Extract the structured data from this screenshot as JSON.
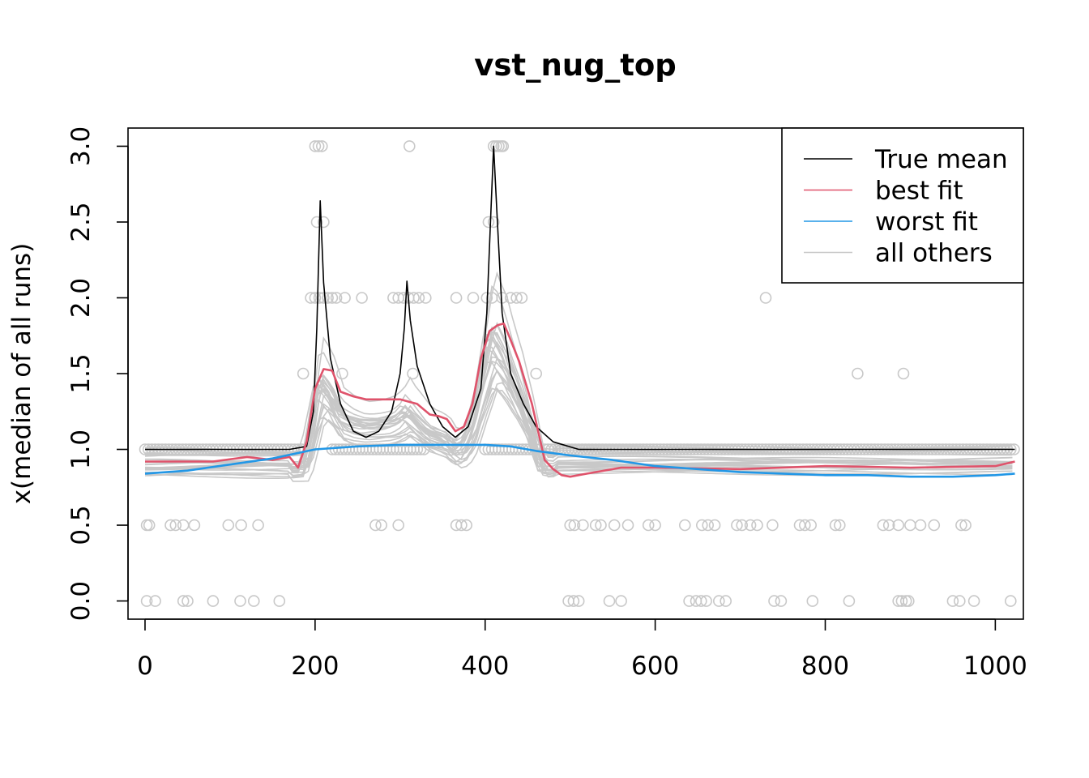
{
  "chart_data": {
    "type": "line",
    "title": "vst_nug_top",
    "xlabel": "",
    "ylabel": "x(median of all runs)",
    "xlim": [
      -20,
      1033
    ],
    "ylim": [
      -0.12,
      3.12
    ],
    "x_ticks": [
      0,
      200,
      400,
      600,
      800,
      1000
    ],
    "y_ticks": [
      0.0,
      0.5,
      1.0,
      1.5,
      2.0,
      2.5,
      3.0
    ],
    "y_tick_labels": [
      "0.0",
      "0.5",
      "1.0",
      "1.5",
      "2.0",
      "2.5",
      "3.0"
    ],
    "legend": {
      "position": "top-right",
      "entries": [
        {
          "label": "True mean",
          "color": "#000000"
        },
        {
          "label": "best fit",
          "color": "#DF536B"
        },
        {
          "label": "worst fit",
          "color": "#2297E6"
        },
        {
          "label": "all others",
          "color": "#C8C8C8"
        }
      ]
    },
    "series": [
      {
        "name": "True mean",
        "color": "#000000",
        "x": [
          0,
          170,
          190,
          198,
          202,
          206,
          210,
          218,
          230,
          245,
          260,
          275,
          290,
          300,
          305,
          308,
          312,
          320,
          335,
          350,
          365,
          380,
          395,
          402,
          407,
          410,
          414,
          420,
          430,
          445,
          460,
          480,
          510,
          600,
          800,
          1023
        ],
        "values": [
          1.0,
          1.0,
          1.02,
          1.25,
          1.8,
          2.64,
          2.1,
          1.6,
          1.3,
          1.12,
          1.08,
          1.12,
          1.25,
          1.5,
          1.8,
          2.11,
          1.85,
          1.55,
          1.3,
          1.15,
          1.08,
          1.15,
          1.4,
          1.9,
          2.6,
          3.0,
          2.55,
          1.9,
          1.5,
          1.3,
          1.15,
          1.05,
          1.0,
          1.0,
          1.0,
          1.0
        ]
      },
      {
        "name": "best fit",
        "color": "#DF536B",
        "x": [
          0,
          40,
          80,
          120,
          150,
          170,
          180,
          190,
          200,
          210,
          220,
          230,
          245,
          260,
          275,
          300,
          320,
          335,
          345,
          355,
          365,
          375,
          385,
          395,
          405,
          415,
          422,
          428,
          440,
          455,
          470,
          480,
          490,
          500,
          520,
          560,
          600,
          700,
          800,
          900,
          1000,
          1023
        ],
        "values": [
          0.92,
          0.92,
          0.92,
          0.95,
          0.93,
          0.95,
          0.88,
          1.05,
          1.4,
          1.53,
          1.52,
          1.38,
          1.35,
          1.33,
          1.33,
          1.33,
          1.3,
          1.23,
          1.22,
          1.2,
          1.12,
          1.15,
          1.3,
          1.6,
          1.78,
          1.82,
          1.83,
          1.75,
          1.58,
          1.3,
          0.93,
          0.87,
          0.83,
          0.82,
          0.84,
          0.88,
          0.88,
          0.87,
          0.89,
          0.88,
          0.89,
          0.92
        ]
      },
      {
        "name": "worst fit",
        "color": "#2297E6",
        "x": [
          0,
          50,
          100,
          150,
          200,
          250,
          300,
          350,
          400,
          430,
          460,
          500,
          550,
          600,
          650,
          700,
          750,
          800,
          850,
          900,
          950,
          1000,
          1023
        ],
        "values": [
          0.84,
          0.86,
          0.9,
          0.94,
          1.0,
          1.02,
          1.03,
          1.03,
          1.03,
          1.02,
          0.99,
          0.96,
          0.93,
          0.89,
          0.87,
          0.85,
          0.84,
          0.83,
          0.83,
          0.82,
          0.82,
          0.83,
          0.84
        ]
      }
    ],
    "other_runs_count": 24,
    "points": {
      "color": "#C8C8C8",
      "values": [
        [
          200,
          3.0
        ],
        [
          204,
          3.0
        ],
        [
          208,
          3.0
        ],
        [
          311,
          3.0
        ],
        [
          410,
          3.0
        ],
        [
          413,
          3.0
        ],
        [
          416,
          3.0
        ],
        [
          419,
          3.0
        ],
        [
          421,
          3.0
        ],
        [
          202,
          2.5
        ],
        [
          210,
          2.5
        ],
        [
          404,
          2.5
        ],
        [
          410,
          2.5
        ],
        [
          195,
          2.0
        ],
        [
          200,
          2.0
        ],
        [
          205,
          2.0
        ],
        [
          210,
          2.0
        ],
        [
          215,
          2.0
        ],
        [
          220,
          2.0
        ],
        [
          225,
          2.0
        ],
        [
          235,
          2.0
        ],
        [
          255,
          2.0
        ],
        [
          292,
          2.0
        ],
        [
          298,
          2.0
        ],
        [
          304,
          2.0
        ],
        [
          310,
          2.0
        ],
        [
          316,
          2.0
        ],
        [
          322,
          2.0
        ],
        [
          330,
          2.0
        ],
        [
          366,
          2.0
        ],
        [
          386,
          2.0
        ],
        [
          402,
          2.0
        ],
        [
          408,
          2.0
        ],
        [
          420,
          2.0
        ],
        [
          430,
          2.0
        ],
        [
          437,
          2.0
        ],
        [
          443,
          2.0
        ],
        [
          730,
          2.0
        ],
        [
          186,
          1.5
        ],
        [
          232,
          1.5
        ],
        [
          315,
          1.5
        ],
        [
          460,
          1.5
        ],
        [
          838,
          1.5
        ],
        [
          892,
          1.5
        ],
        [
          2,
          0.5
        ],
        [
          5,
          0.5
        ],
        [
          30,
          0.5
        ],
        [
          36,
          0.5
        ],
        [
          45,
          0.5
        ],
        [
          58,
          0.5
        ],
        [
          98,
          0.5
        ],
        [
          113,
          0.5
        ],
        [
          133,
          0.5
        ],
        [
          271,
          0.5
        ],
        [
          278,
          0.5
        ],
        [
          298,
          0.5
        ],
        [
          366,
          0.5
        ],
        [
          372,
          0.5
        ],
        [
          378,
          0.5
        ],
        [
          500,
          0.5
        ],
        [
          505,
          0.5
        ],
        [
          515,
          0.5
        ],
        [
          530,
          0.5
        ],
        [
          536,
          0.5
        ],
        [
          552,
          0.5
        ],
        [
          568,
          0.5
        ],
        [
          592,
          0.5
        ],
        [
          600,
          0.5
        ],
        [
          635,
          0.5
        ],
        [
          655,
          0.5
        ],
        [
          662,
          0.5
        ],
        [
          670,
          0.5
        ],
        [
          696,
          0.5
        ],
        [
          702,
          0.5
        ],
        [
          712,
          0.5
        ],
        [
          720,
          0.5
        ],
        [
          738,
          0.5
        ],
        [
          770,
          0.5
        ],
        [
          776,
          0.5
        ],
        [
          783,
          0.5
        ],
        [
          812,
          0.5
        ],
        [
          817,
          0.5
        ],
        [
          868,
          0.5
        ],
        [
          875,
          0.5
        ],
        [
          886,
          0.5
        ],
        [
          900,
          0.5
        ],
        [
          912,
          0.5
        ],
        [
          928,
          0.5
        ],
        [
          960,
          0.5
        ],
        [
          965,
          0.5
        ],
        [
          2,
          0.0
        ],
        [
          12,
          0.0
        ],
        [
          45,
          0.0
        ],
        [
          50,
          0.0
        ],
        [
          80,
          0.0
        ],
        [
          112,
          0.0
        ],
        [
          128,
          0.0
        ],
        [
          158,
          0.0
        ],
        [
          498,
          0.0
        ],
        [
          504,
          0.0
        ],
        [
          510,
          0.0
        ],
        [
          546,
          0.0
        ],
        [
          560,
          0.0
        ],
        [
          640,
          0.0
        ],
        [
          648,
          0.0
        ],
        [
          654,
          0.0
        ],
        [
          660,
          0.0
        ],
        [
          675,
          0.0
        ],
        [
          683,
          0.0
        ],
        [
          740,
          0.0
        ],
        [
          748,
          0.0
        ],
        [
          785,
          0.0
        ],
        [
          828,
          0.0
        ],
        [
          886,
          0.0
        ],
        [
          890,
          0.0
        ],
        [
          895,
          0.0
        ],
        [
          898,
          0.0
        ],
        [
          950,
          0.0
        ],
        [
          958,
          0.0
        ],
        [
          975,
          0.0
        ],
        [
          1018,
          0.0
        ]
      ],
      "baseline_y": 1.0,
      "baseline_x_ranges": [
        [
          0,
          185
        ],
        [
          220,
          330
        ],
        [
          400,
          460
        ],
        [
          470,
          1023
        ]
      ]
    }
  }
}
